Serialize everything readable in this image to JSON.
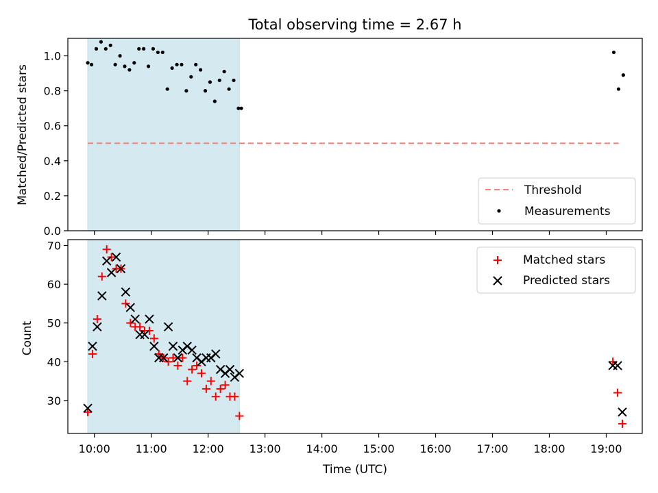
{
  "chart_data": [
    {
      "type": "scatter",
      "title": "Total observing time = 2.67 h",
      "xlabel": "",
      "ylabel": "Matched/Predicted stars",
      "ylim": [
        0.0,
        1.1
      ],
      "yticks": [
        "0.0",
        "0.2",
        "0.4",
        "0.6",
        "0.8",
        "1.0"
      ],
      "legend_position": "lower-right",
      "shaded_interval": {
        "start": "09:53",
        "end": "12:33",
        "color": "#d4eaf0"
      },
      "threshold": {
        "name": "Threshold",
        "value": 0.5,
        "x_start": "09:53",
        "x_end": "19:13",
        "color": "#f08080",
        "style": "dashed"
      },
      "series": [
        {
          "name": "Measurements",
          "color": "#000000",
          "marker": "dot",
          "x": [
            "09:53",
            "09:57",
            "10:02",
            "10:07",
            "10:12",
            "10:17",
            "10:22",
            "10:27",
            "10:32",
            "10:37",
            "10:42",
            "10:47",
            "10:52",
            "10:57",
            "11:02",
            "11:07",
            "11:12",
            "11:17",
            "11:22",
            "11:27",
            "11:32",
            "11:37",
            "11:42",
            "11:47",
            "11:52",
            "11:57",
            "12:02",
            "12:07",
            "12:12",
            "12:17",
            "12:22",
            "12:27",
            "12:32",
            "12:35",
            "19:08",
            "19:13",
            "19:18"
          ],
          "y": [
            0.96,
            0.95,
            1.04,
            1.08,
            1.04,
            1.06,
            0.95,
            1.0,
            0.94,
            0.92,
            0.96,
            1.04,
            1.04,
            0.94,
            1.04,
            1.02,
            1.02,
            0.81,
            0.93,
            0.95,
            0.95,
            0.8,
            0.88,
            0.95,
            0.92,
            0.8,
            0.85,
            0.74,
            0.86,
            0.91,
            0.81,
            0.86,
            0.7,
            0.7,
            1.02,
            0.81,
            0.89
          ]
        }
      ]
    },
    {
      "type": "scatter",
      "title": "",
      "xlabel": "Time (UTC)",
      "ylabel": "Count",
      "ylim": [
        21.5,
        71.5
      ],
      "yticks": [
        "30",
        "40",
        "50",
        "60",
        "70"
      ],
      "xticks": [
        "10:00",
        "11:00",
        "12:00",
        "13:00",
        "14:00",
        "15:00",
        "16:00",
        "17:00",
        "18:00",
        "19:00"
      ],
      "legend_position": "upper-right",
      "shaded_interval": {
        "start": "09:53",
        "end": "12:33",
        "color": "#d4eaf0"
      },
      "series": [
        {
          "name": "Matched stars",
          "color": "#ff0000",
          "marker": "plus",
          "x": [
            "09:53",
            "09:58",
            "10:03",
            "10:08",
            "10:13",
            "10:18",
            "10:23",
            "10:28",
            "10:33",
            "10:38",
            "10:43",
            "10:48",
            "10:53",
            "10:58",
            "11:03",
            "11:08",
            "11:13",
            "11:18",
            "11:23",
            "11:28",
            "11:33",
            "11:38",
            "11:43",
            "11:48",
            "11:53",
            "11:58",
            "12:03",
            "12:08",
            "12:13",
            "12:18",
            "12:23",
            "12:28",
            "12:33",
            "19:07",
            "19:12",
            "19:17"
          ],
          "y": [
            27,
            42,
            51,
            62,
            69,
            67,
            64,
            64,
            55,
            50,
            49,
            49,
            48,
            48,
            46,
            42,
            41,
            40,
            41,
            39,
            41,
            35,
            38,
            39,
            37,
            33,
            35,
            31,
            33,
            34,
            31,
            31,
            26,
            40,
            32,
            24
          ]
        },
        {
          "name": "Predicted stars",
          "color": "#000000",
          "marker": "x",
          "x": [
            "09:53",
            "09:58",
            "10:03",
            "10:08",
            "10:13",
            "10:18",
            "10:23",
            "10:28",
            "10:33",
            "10:38",
            "10:43",
            "10:48",
            "10:53",
            "10:58",
            "11:03",
            "11:08",
            "11:13",
            "11:18",
            "11:23",
            "11:28",
            "11:33",
            "11:38",
            "11:43",
            "11:48",
            "11:53",
            "11:58",
            "12:03",
            "12:08",
            "12:13",
            "12:18",
            "12:23",
            "12:28",
            "12:33",
            "19:07",
            "19:12",
            "19:17"
          ],
          "y": [
            28,
            44,
            49,
            57,
            66,
            63,
            67,
            64,
            58,
            54,
            51,
            47,
            47,
            51,
            44,
            41,
            41,
            49,
            44,
            41,
            43,
            44,
            43,
            41,
            40,
            41,
            41,
            42,
            38,
            37,
            38,
            36,
            37,
            39,
            39,
            27
          ]
        }
      ]
    }
  ]
}
